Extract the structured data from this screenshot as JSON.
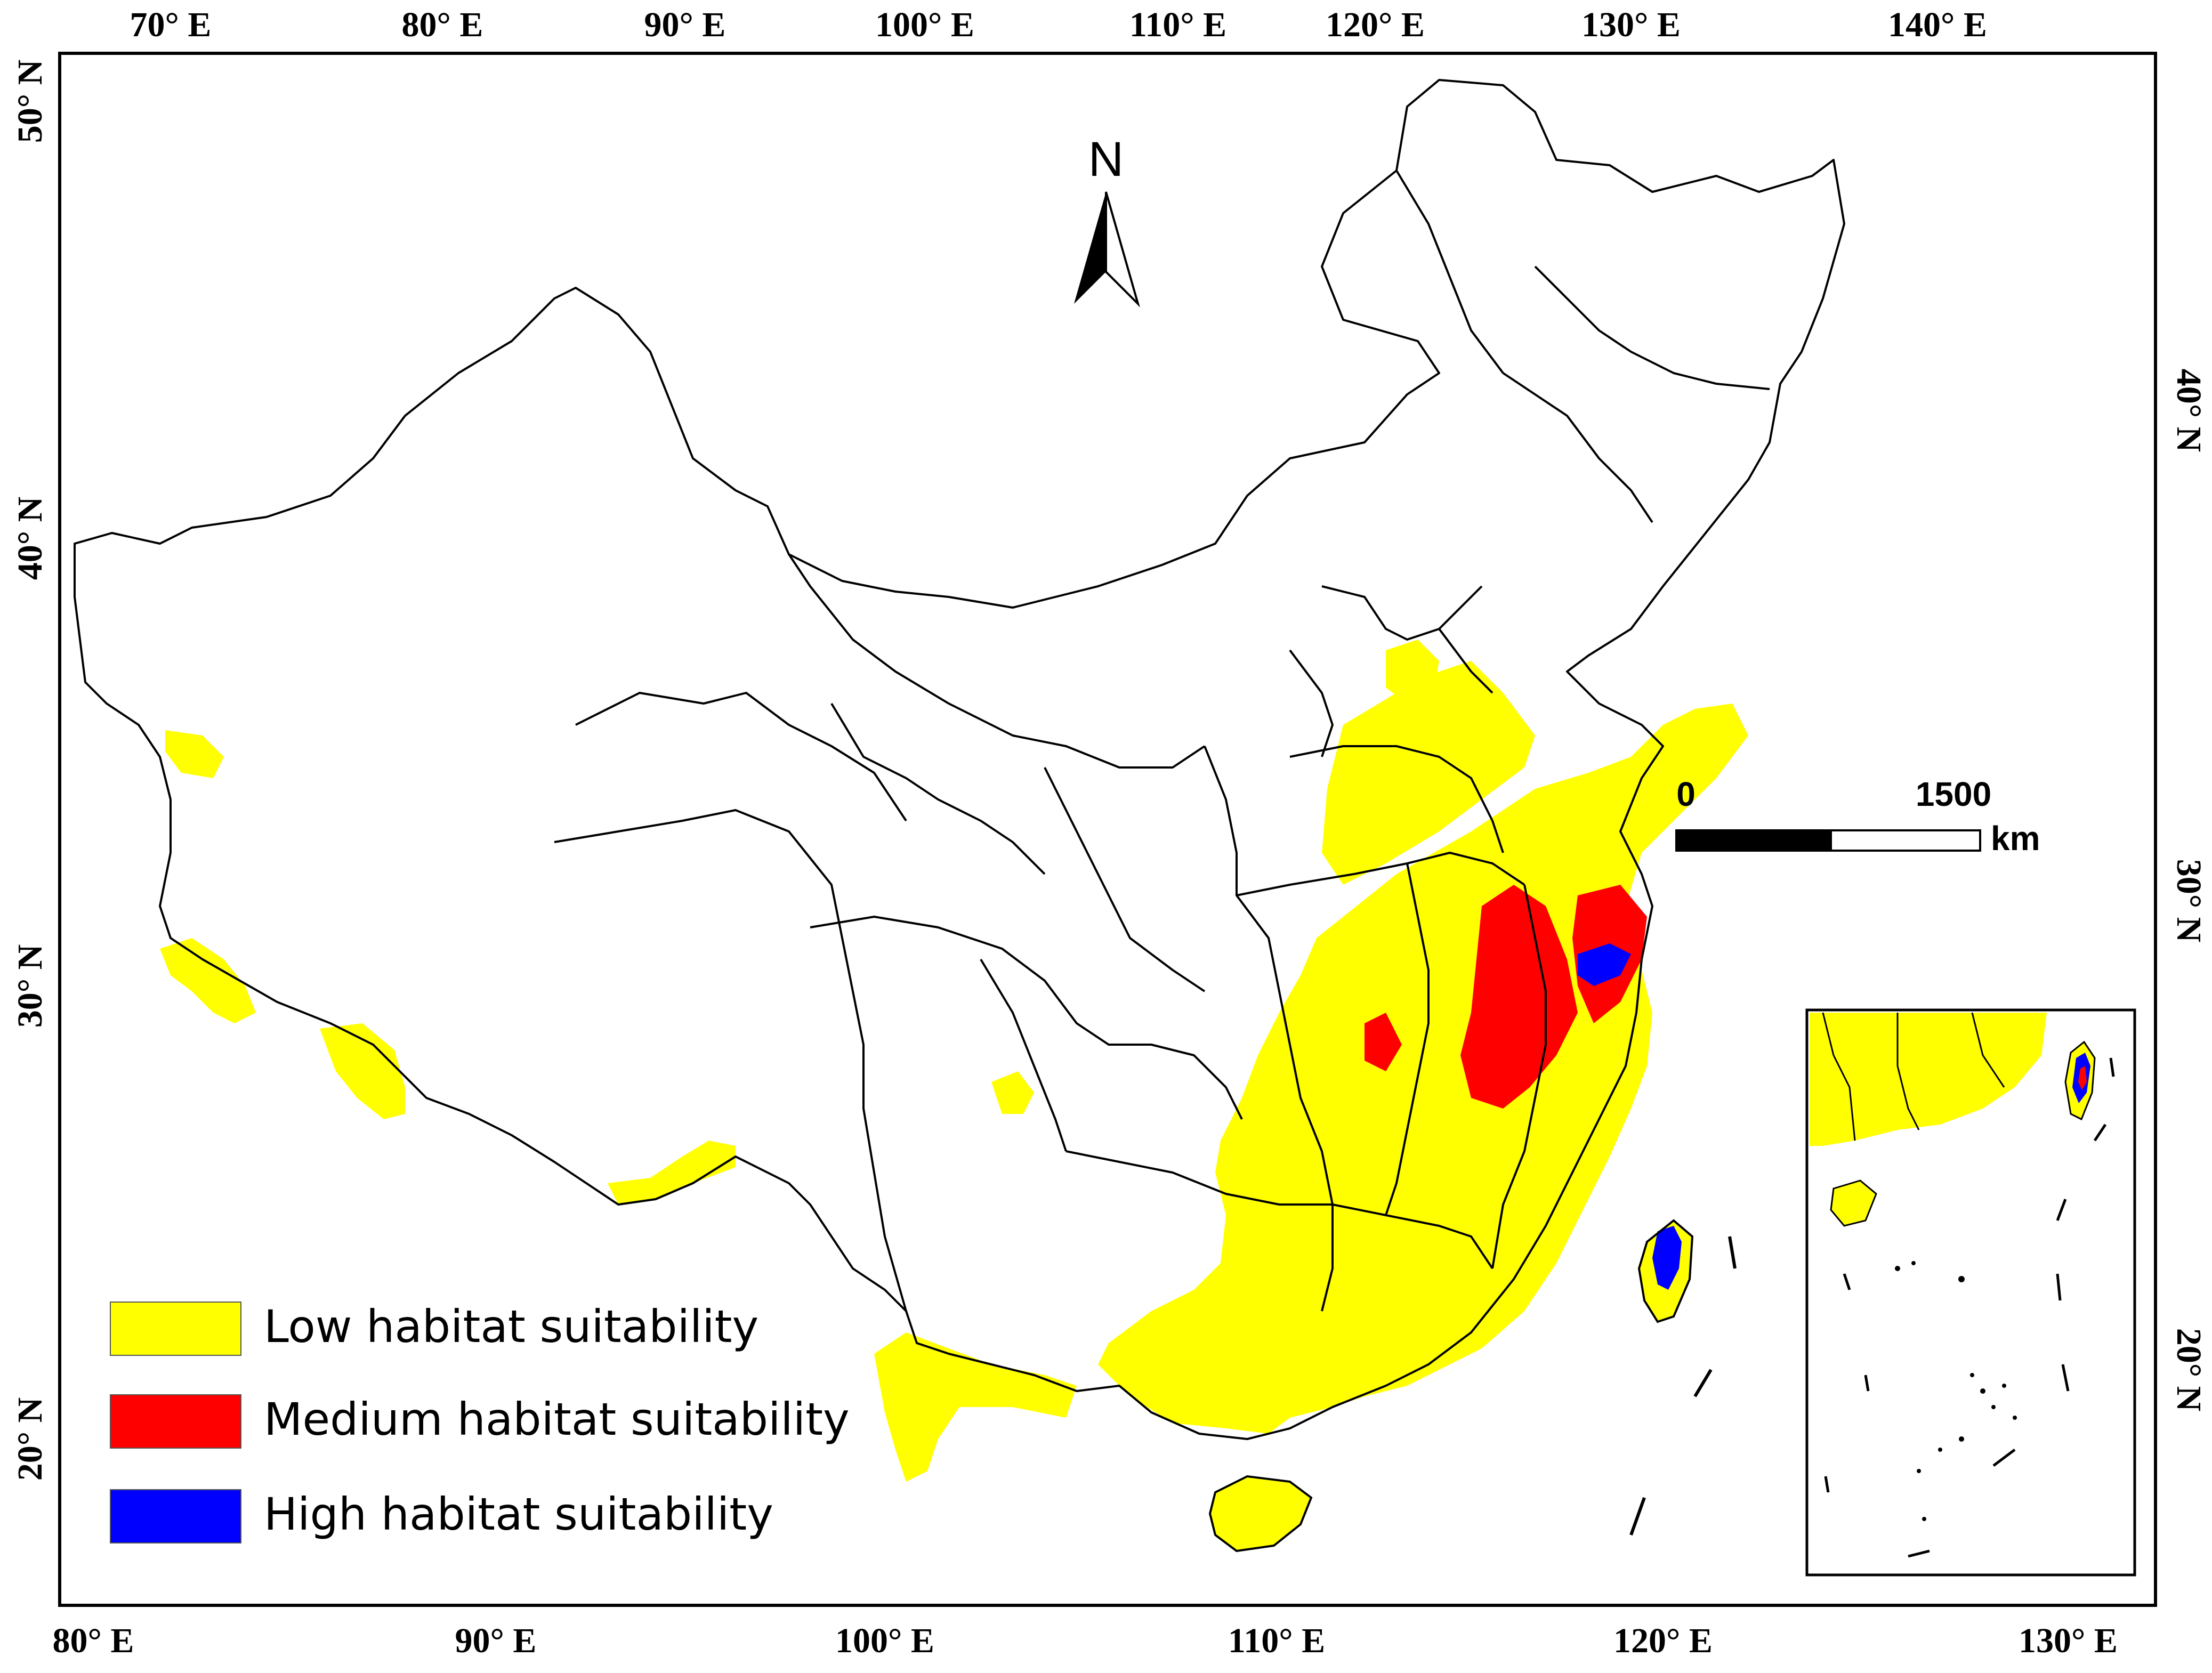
{
  "axes": {
    "top_longitudes": [
      "70° E",
      "80° E",
      "90° E",
      "100° E",
      "110° E",
      "120° E",
      "130° E",
      "140° E"
    ],
    "bottom_longitudes": [
      "80° E",
      "90° E",
      "100° E",
      "110° E",
      "120° E",
      "130° E"
    ],
    "left_latitudes": [
      "50° N",
      "40° N",
      "30° N",
      "20° N"
    ],
    "right_latitudes": [
      "40° N",
      "30° N",
      "20° N"
    ]
  },
  "north_arrow": {
    "label": "N"
  },
  "scale_bar": {
    "start_label": "0",
    "end_label": "1500",
    "unit": "km"
  },
  "legend": {
    "items": [
      {
        "label": "Low habitat suitability",
        "color": "#ffff00"
      },
      {
        "label": "Medium habitat suitability",
        "color": "#ff0000"
      },
      {
        "label": "High habitat suitability",
        "color": "#0000ff"
      }
    ]
  },
  "colors": {
    "low": "#ffff00",
    "medium": "#ff0000",
    "high": "#0000ff",
    "boundary": "#000000"
  }
}
